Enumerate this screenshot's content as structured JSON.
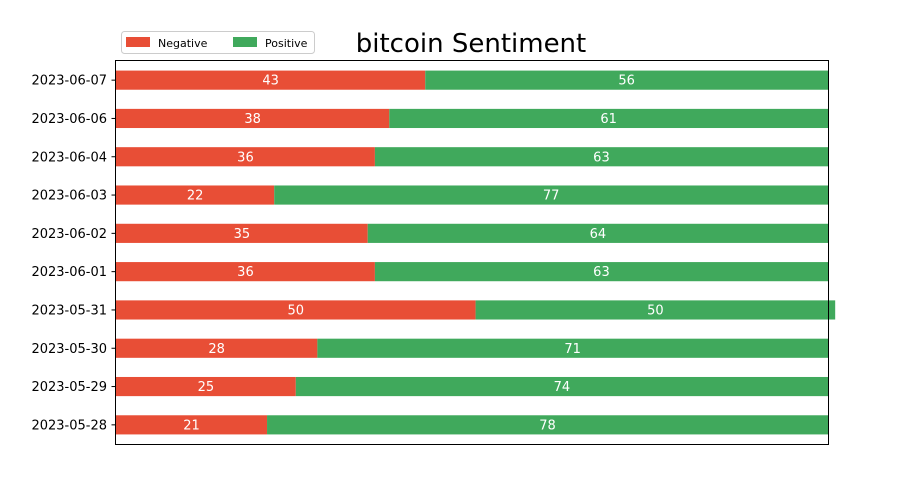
{
  "chart_data": {
    "type": "bar",
    "orientation": "horizontal",
    "stacked": true,
    "title": "bitcoin Sentiment",
    "xlabel": "",
    "ylabel": "",
    "categories": [
      "2023-06-07",
      "2023-06-06",
      "2023-06-04",
      "2023-06-03",
      "2023-06-02",
      "2023-06-01",
      "2023-05-31",
      "2023-05-30",
      "2023-05-29",
      "2023-05-28"
    ],
    "series": [
      {
        "name": "Negative",
        "color": "#e84e36",
        "values": [
          43,
          38,
          36,
          22,
          35,
          36,
          50,
          28,
          25,
          21
        ]
      },
      {
        "name": "Positive",
        "color": "#40a95c",
        "values": [
          56,
          61,
          63,
          77,
          64,
          63,
          50,
          71,
          74,
          78
        ]
      }
    ],
    "xlim": [
      0,
      99
    ],
    "grid": false,
    "legend_position": "top-left",
    "data_labels": true
  }
}
